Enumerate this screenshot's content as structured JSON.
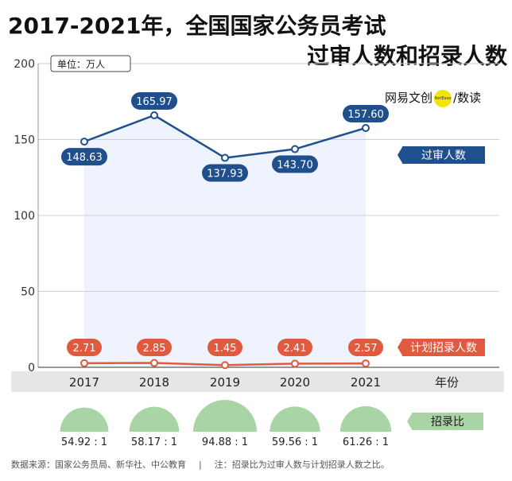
{
  "title_line1": "2017-2021年，全国国家公务员考试",
  "title_line2": "过审人数和招录人数",
  "brand": {
    "part1": "网易文创",
    "dot": "NetEase",
    "part2": "/数读"
  },
  "unit_label": "单位：万人",
  "footer": {
    "source": "数据来源：国家公务员局、新华社、中公教育",
    "separator": "|",
    "note": "注：招录比为过审人数与计划招录人数之比。"
  },
  "colors": {
    "blue": "#1f4f8c",
    "red": "#e05a3e",
    "green": "#a8d4a6",
    "fill": "#eef3fd",
    "axis_bar": "#e6e6e6"
  },
  "chart_data": {
    "type": "line",
    "x": [
      "2017",
      "2018",
      "2019",
      "2020",
      "2021"
    ],
    "xlabel": "年份",
    "ylim": [
      0,
      200
    ],
    "yticks": [
      0,
      50,
      100,
      150,
      200
    ],
    "series": [
      {
        "name": "过审人数",
        "values": [
          148.63,
          165.97,
          137.93,
          143.7,
          157.6
        ],
        "labels": [
          "148.63",
          "165.97",
          "137.93",
          "143.70",
          "157.60"
        ]
      },
      {
        "name": "计划招录人数",
        "values": [
          2.71,
          2.85,
          1.45,
          2.41,
          2.57
        ],
        "labels": [
          "2.71",
          "2.85",
          "1.45",
          "2.41",
          "2.57"
        ]
      }
    ],
    "ratio": {
      "name": "招录比",
      "values": [
        54.92,
        58.17,
        94.88,
        59.56,
        61.26
      ],
      "labels": [
        "54.92 : 1",
        "58.17 : 1",
        "94.88 : 1",
        "59.56 : 1",
        "61.26 : 1"
      ]
    }
  }
}
